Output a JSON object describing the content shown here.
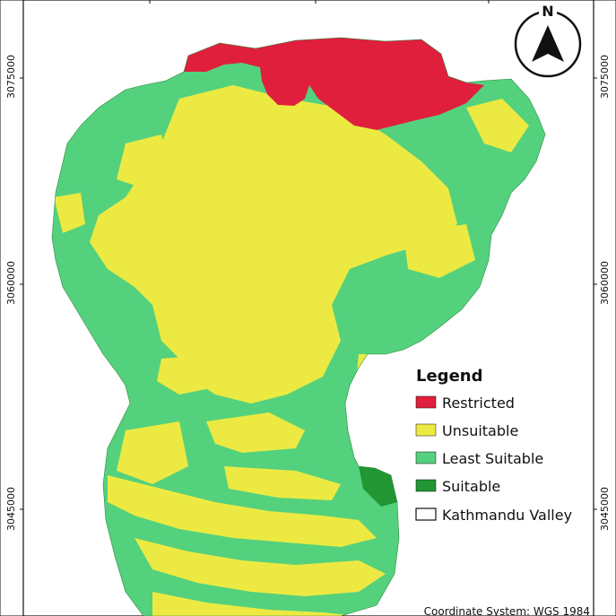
{
  "map": {
    "coordinates": {
      "left_top": "3075000",
      "left_middle": "3060000",
      "left_bottom": "3045000",
      "right_top": "3075000",
      "right_middle": "3060000",
      "right_bottom": "3045000"
    },
    "north_arrow": {
      "label": "N",
      "icon": "north-arrow-icon"
    },
    "legend": {
      "title": "Legend",
      "items": [
        {
          "label": "Restricted",
          "color": "#e01f3d"
        },
        {
          "label": "Unsuitable",
          "color": "#ecea42"
        },
        {
          "label": "Least Suitable",
          "color": "#54d17d"
        },
        {
          "label": "Suitable",
          "color": "#219633"
        },
        {
          "label": "Kathmandu Valley",
          "color": "#ffffff"
        }
      ]
    },
    "credit": "Coordinate System: WGS 1984"
  }
}
